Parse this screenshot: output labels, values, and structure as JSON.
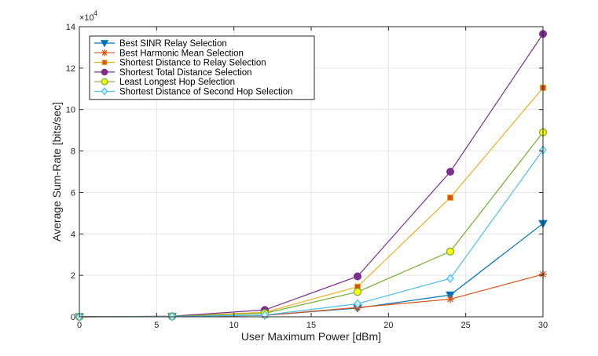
{
  "chart_data": {
    "type": "line",
    "xlabel": "User Maximum Power [dBm]",
    "ylabel": "Average Sum-Rate [bits/sec]",
    "xlim": [
      0,
      30
    ],
    "ylim": [
      0,
      140000
    ],
    "xticks": [
      0,
      5,
      10,
      15,
      20,
      25,
      30
    ],
    "yticks": [
      0,
      20000,
      40000,
      60000,
      80000,
      100000,
      120000,
      140000
    ],
    "ytick_labels": [
      "0",
      "2",
      "4",
      "6",
      "8",
      "10",
      "12",
      "14"
    ],
    "y_exponent_base": "×10",
    "y_exponent_power": "4",
    "grid": true,
    "legend_position": "top-left",
    "x": [
      0,
      6,
      12,
      18,
      24,
      30
    ],
    "series": [
      {
        "name": "Best SINR Relay Selection",
        "color": "#0072BD",
        "marker": "triangle-down",
        "values": [
          0,
          100,
          700,
          4200,
          10500,
          45000
        ]
      },
      {
        "name": "Best Harmonic Mean Selection",
        "color": "#D95319",
        "marker": "asterisk",
        "values": [
          0,
          100,
          700,
          4500,
          8500,
          20500
        ]
      },
      {
        "name": "Shortest Distance to Relay Selection",
        "color": "#EDB120",
        "marker": "square",
        "values": [
          0,
          200,
          2200,
          14500,
          57500,
          110500
        ]
      },
      {
        "name": "Shortest Total Distance Selection",
        "color": "#7E2F8E",
        "marker": "circle",
        "values": [
          0,
          300,
          3300,
          19500,
          70000,
          136500
        ]
      },
      {
        "name": "Least Longest Hop Selection",
        "color": "#77AC30",
        "marker": "circle-yellow",
        "values": [
          0,
          200,
          1700,
          12000,
          31500,
          89000
        ]
      },
      {
        "name": "Shortest Distance of Second Hop Selection",
        "color": "#4DBEEE",
        "marker": "diamond",
        "values": [
          0,
          100,
          800,
          6300,
          18500,
          80500
        ]
      }
    ]
  }
}
